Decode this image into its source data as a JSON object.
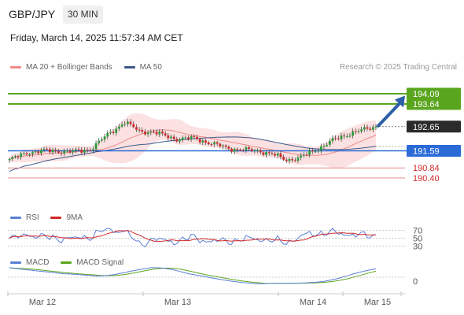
{
  "header": {
    "pair": "GBP/JPY",
    "timeframe": "30 MIN",
    "timestamp": "Friday, March 14, 2025 11:57:34 AM CET"
  },
  "legend": {
    "ma20": "MA 20 + Bollinger Bands",
    "ma50": "MA 50",
    "credit": "Research © 2025 Trading Central"
  },
  "rsi_legend": {
    "rsi": "RSI",
    "ma": "9MA"
  },
  "macd_legend": {
    "macd": "MACD",
    "signal": "MACD Signal"
  },
  "colors": {
    "resistance": "#5aa51e",
    "support": "#e68c8c",
    "pivot": "#2a6bd8",
    "last": "#2b2b2b",
    "arrow": "#2d5fa7",
    "bb": "#fadcdc",
    "ma20": "#f08a8a",
    "ma50": "#3d5a8a",
    "up": "#2e9a3a",
    "down": "#d22a2a"
  },
  "chart_data": [
    {
      "type": "candlestick",
      "ylim": [
        189.4,
        194.4
      ],
      "x_labels": [
        "Mar 12",
        "Mar 13",
        "Mar 14",
        "Mar 15"
      ],
      "levels": [
        {
          "value": 194.09,
          "label": "194.09",
          "kind": "resistance"
        },
        {
          "value": 193.64,
          "label": "193.64",
          "kind": "resistance"
        },
        {
          "value": 192.65,
          "label": "192.65",
          "kind": "last"
        },
        {
          "value": 191.59,
          "label": "191.59",
          "kind": "pivot"
        },
        {
          "value": 190.84,
          "label": "190.84",
          "kind": "support"
        },
        {
          "value": 190.4,
          "label": "190.40",
          "kind": "support"
        }
      ],
      "arrow": {
        "from": 192.65,
        "to": 193.97,
        "direction": "up"
      },
      "series": [
        {
          "name": "MA 20 + Bollinger Bands",
          "type": "band"
        },
        {
          "name": "MA 50",
          "type": "line"
        }
      ]
    },
    {
      "type": "line",
      "title": "RSI",
      "ylim": [
        25,
        75
      ],
      "y_ticks": [
        "70",
        "50",
        "30"
      ],
      "series": [
        {
          "name": "RSI"
        },
        {
          "name": "9MA"
        }
      ]
    },
    {
      "type": "line",
      "title": "MACD",
      "y_ticks": [
        "0"
      ],
      "series": [
        {
          "name": "MACD"
        },
        {
          "name": "MACD Signal"
        }
      ]
    }
  ]
}
